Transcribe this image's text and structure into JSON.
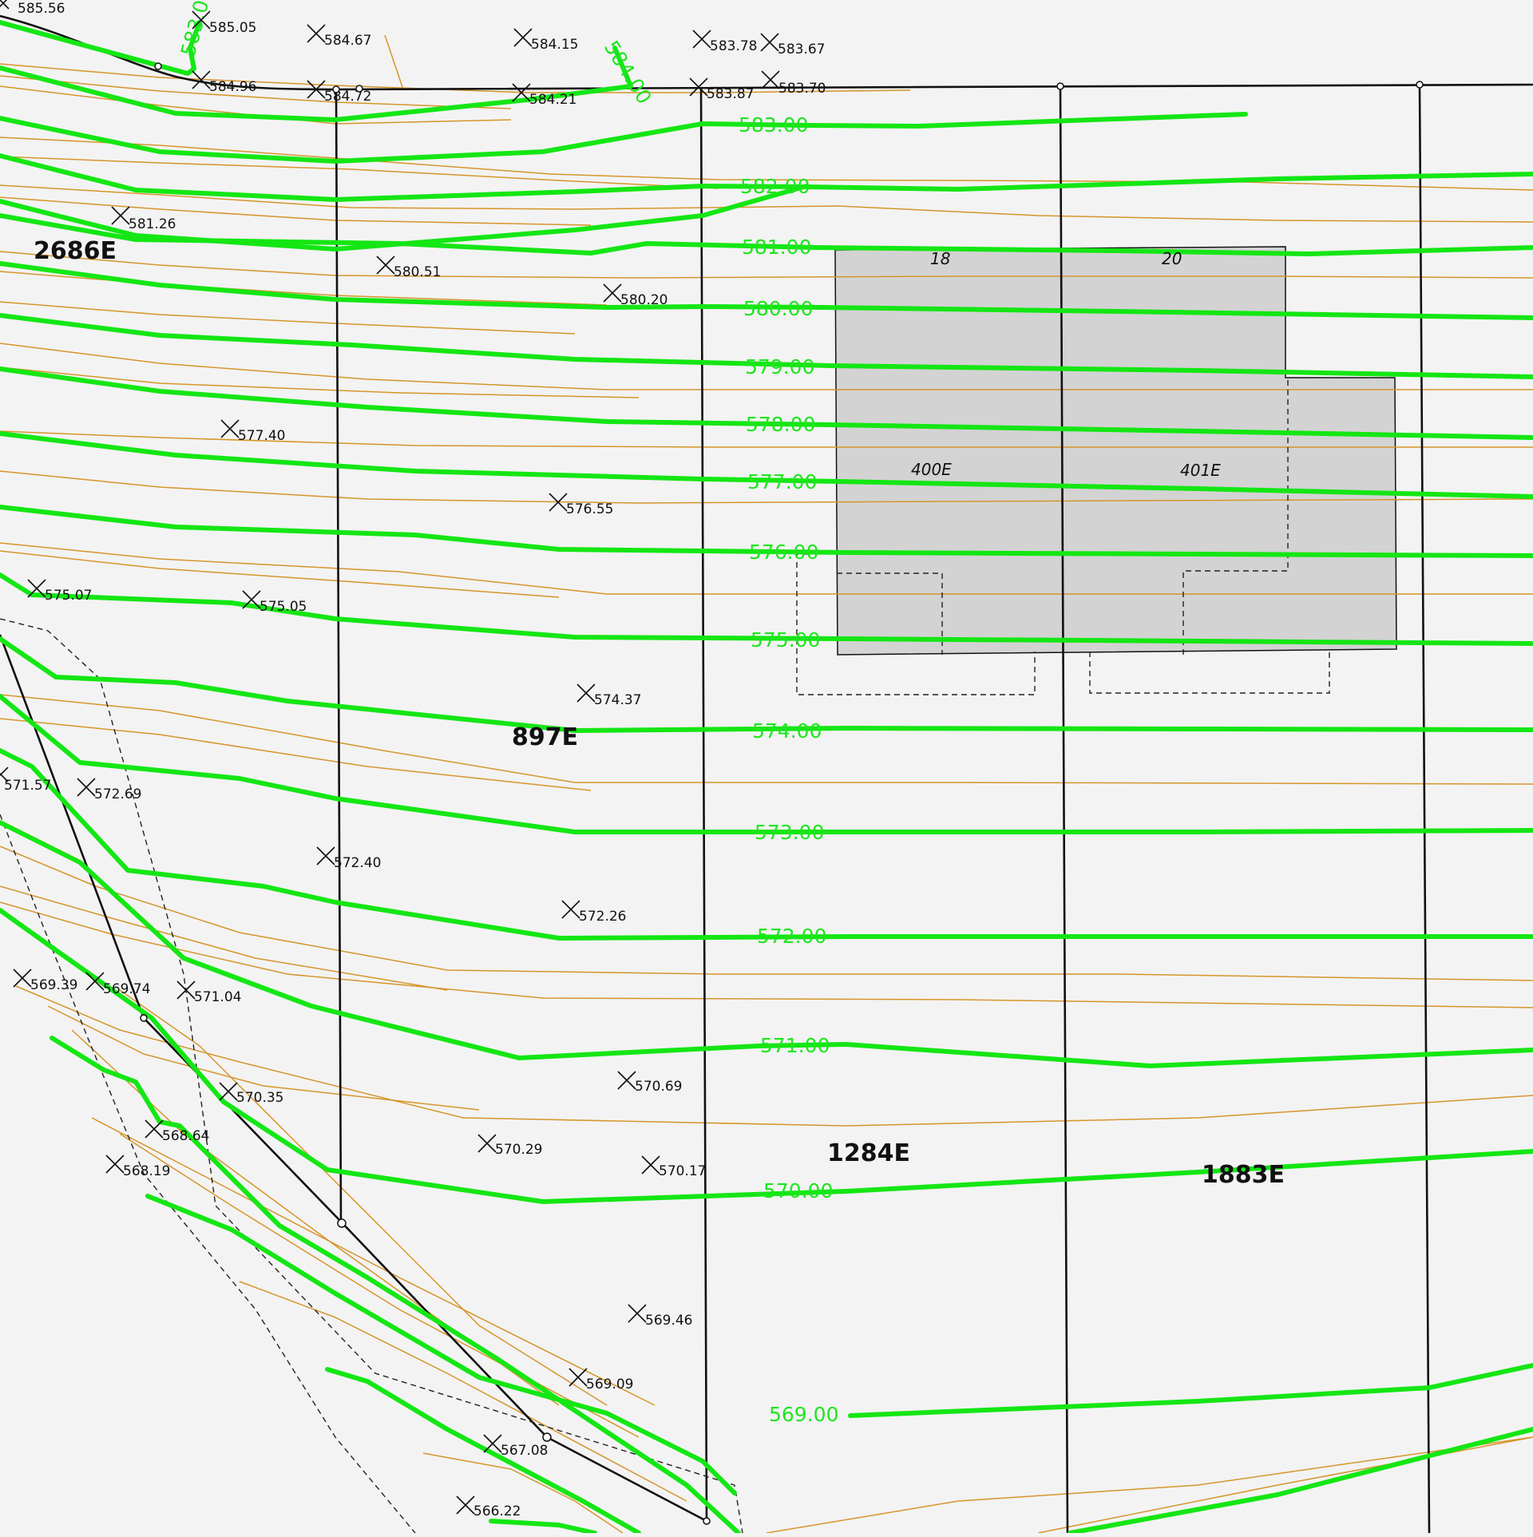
{
  "contour_labels": [
    "584.00",
    "583.00",
    "582.00",
    "581.00",
    "580.00",
    "579.00",
    "578.00",
    "577.00",
    "576.00",
    "575.00",
    "574.00",
    "573.00",
    "572.00",
    "571.00",
    "570.00",
    "569.00",
    "583.00"
  ],
  "spot_elevations": [
    "585.56",
    "585.05",
    "584.67",
    "584.15",
    "583.78",
    "583.67",
    "584.96",
    "584.72",
    "584.21",
    "583.87",
    "583.70",
    "581.26",
    "580.51",
    "580.20",
    "577.40",
    "576.55",
    "575.07",
    "575.05",
    "574.37",
    "571.57",
    "572.69",
    "572.40",
    "572.26",
    "569.39",
    "569.74",
    "571.04",
    "570.69",
    "570.35",
    "568.64",
    "570.29",
    "570.17",
    "568.19",
    "569.46",
    "569.09",
    "567.08",
    "566.22"
  ],
  "parcels": [
    "2686E",
    "897E",
    "1284E",
    "1883E"
  ],
  "building": {
    "lot_numbers": [
      "18",
      "20"
    ],
    "unit_labels": [
      "400E",
      "401E"
    ]
  },
  "colors": {
    "background": "#f3f3f3",
    "contour_major": "#14e614",
    "contour_minor": "#d6952a",
    "building_fill": "#d3d3d3",
    "lot_line": "#111111"
  }
}
